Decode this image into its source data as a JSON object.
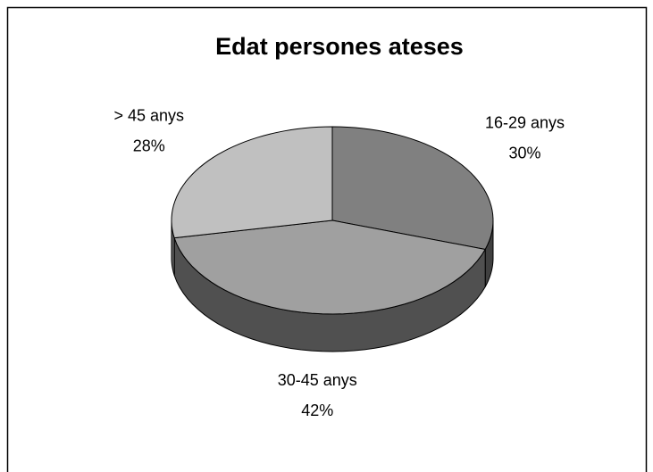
{
  "chart_data": {
    "type": "pie",
    "title": "Edat persones ateses",
    "categories": [
      "16-29 anys",
      "30-45 anys",
      "> 45 anys"
    ],
    "values": [
      30,
      42,
      28
    ],
    "value_labels": [
      "30%",
      "42%",
      "28%"
    ],
    "colors": [
      "#808080",
      "#a0a0a0",
      "#c0c0c0"
    ]
  }
}
